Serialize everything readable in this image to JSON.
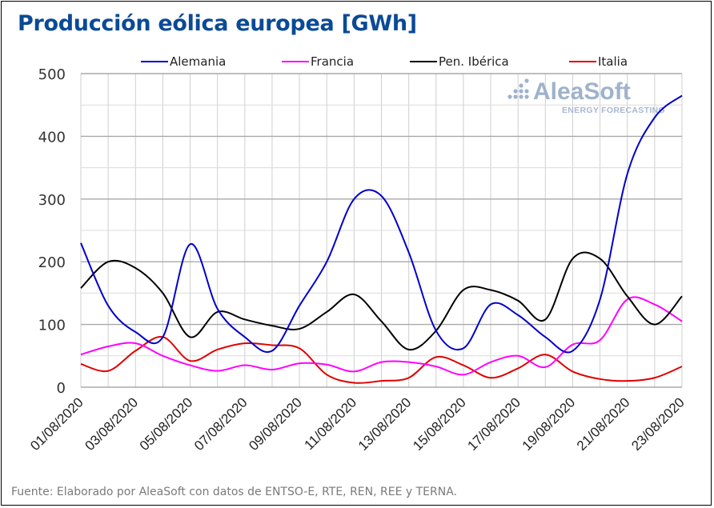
{
  "chart_data": {
    "type": "line",
    "title": "Producción eólica europea [GWh]",
    "xlabel": "",
    "ylabel": "",
    "ylim": [
      0,
      500
    ],
    "yticks": [
      0,
      100,
      200,
      300,
      400,
      500
    ],
    "grid": true,
    "legend_position": "top",
    "x": [
      "01/08/2020",
      "02/08/2020",
      "03/08/2020",
      "04/08/2020",
      "05/08/2020",
      "06/08/2020",
      "07/08/2020",
      "08/08/2020",
      "09/08/2020",
      "10/08/2020",
      "11/08/2020",
      "12/08/2020",
      "13/08/2020",
      "14/08/2020",
      "15/08/2020",
      "16/08/2020",
      "17/08/2020",
      "18/08/2020",
      "19/08/2020",
      "20/08/2020",
      "21/08/2020",
      "22/08/2020",
      "23/08/2020"
    ],
    "x_tick_labels": [
      "01/08/2020",
      "03/08/2020",
      "05/08/2020",
      "07/08/2020",
      "09/08/2020",
      "11/08/2020",
      "13/08/2020",
      "15/08/2020",
      "17/08/2020",
      "19/08/2020",
      "21/08/2020",
      "23/08/2020"
    ],
    "series": [
      {
        "name": "Alemania",
        "color": "#0000cc",
        "values": [
          230,
          130,
          88,
          80,
          228,
          125,
          80,
          58,
          130,
          200,
          300,
          305,
          215,
          90,
          62,
          132,
          115,
          80,
          58,
          140,
          340,
          430,
          465
        ]
      },
      {
        "name": "Francia",
        "color": "#ff00ff",
        "values": [
          52,
          65,
          70,
          50,
          35,
          26,
          35,
          28,
          38,
          36,
          25,
          40,
          40,
          33,
          20,
          40,
          50,
          32,
          68,
          75,
          140,
          132,
          105
        ]
      },
      {
        "name": "Pen. Ibérica",
        "color": "#000000",
        "values": [
          158,
          200,
          190,
          150,
          80,
          120,
          108,
          98,
          93,
          120,
          148,
          105,
          60,
          90,
          155,
          155,
          138,
          108,
          205,
          205,
          145,
          100,
          145
        ]
      },
      {
        "name": "Italia",
        "color": "#e00000",
        "values": [
          37,
          26,
          58,
          80,
          42,
          60,
          70,
          67,
          62,
          20,
          7,
          10,
          15,
          48,
          35,
          15,
          30,
          52,
          25,
          13,
          10,
          15,
          33
        ]
      }
    ]
  },
  "watermark": {
    "brand": "AleaSoft",
    "tagline": "ENERGY FORECASTING"
  },
  "footer": "Fuente: Elaborado por AleaSoft con datos de ENTSO-E, RTE, REN, REE y TERNA."
}
